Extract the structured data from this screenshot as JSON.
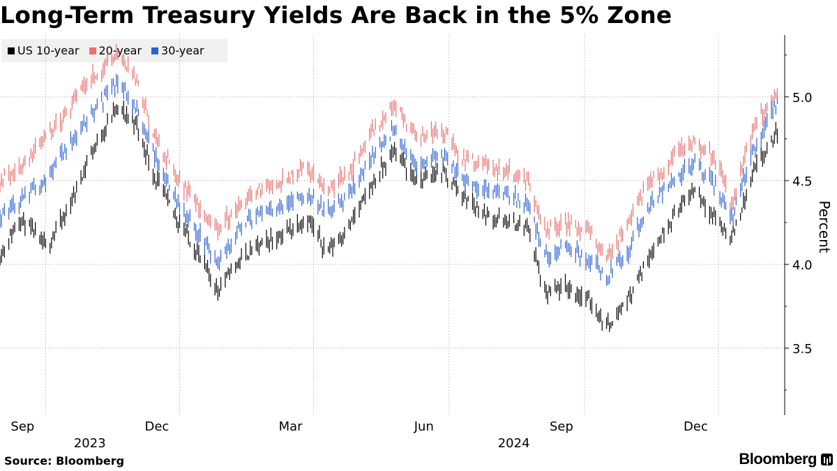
{
  "title": "Long-Term Treasury Yields Are Back in the 5% Zone",
  "source": "Source: Bloomberg",
  "brand": "Bloomberg",
  "chart_data": {
    "type": "line",
    "title": "Long-Term Treasury Yields Are Back in the 5% Zone",
    "ylabel": "Percent",
    "ylim": [
      3.1,
      5.37
    ],
    "yticks": [
      3.5,
      4.0,
      4.5,
      5.0
    ],
    "ytick_labels": [
      "3.5",
      "4.0",
      "4.5",
      "5.0"
    ],
    "x_range": [
      "2023-08-01",
      "2025-01-15"
    ],
    "x_months": [
      "Sep",
      "Dec",
      "Mar",
      "Jun",
      "Sep",
      "Dec"
    ],
    "x_month_dates": [
      "2023-09-01",
      "2023-12-01",
      "2024-03-01",
      "2024-06-01",
      "2024-09-01",
      "2024-12-01"
    ],
    "x_years": [
      "2023",
      "2024"
    ],
    "x_year_dates": [
      "2023-10-01",
      "2024-07-15"
    ],
    "grid": true,
    "legend_position": "top-left",
    "series": [
      {
        "name": "US 10-year",
        "color": "#000000",
        "dates": [
          "2023-08-01",
          "2023-08-15",
          "2023-09-01",
          "2023-09-15",
          "2023-10-01",
          "2023-10-19",
          "2023-11-01",
          "2023-11-15",
          "2023-12-01",
          "2023-12-27",
          "2024-01-10",
          "2024-01-25",
          "2024-02-10",
          "2024-02-25",
          "2024-03-10",
          "2024-03-25",
          "2024-04-10",
          "2024-04-25",
          "2024-05-10",
          "2024-05-28",
          "2024-06-10",
          "2024-06-25",
          "2024-07-10",
          "2024-07-25",
          "2024-08-05",
          "2024-08-20",
          "2024-09-05",
          "2024-09-16",
          "2024-10-01",
          "2024-10-15",
          "2024-11-01",
          "2024-11-15",
          "2024-12-01",
          "2024-12-10",
          "2024-12-25",
          "2025-01-10"
        ],
        "values": [
          4.05,
          4.28,
          4.1,
          4.3,
          4.65,
          4.93,
          4.85,
          4.5,
          4.25,
          3.85,
          4.02,
          4.12,
          4.18,
          4.28,
          4.08,
          4.22,
          4.48,
          4.68,
          4.5,
          4.55,
          4.42,
          4.3,
          4.25,
          4.22,
          3.82,
          3.86,
          3.78,
          3.63,
          3.8,
          4.05,
          4.3,
          4.45,
          4.25,
          4.15,
          4.55,
          4.78
        ]
      },
      {
        "name": "20-year",
        "color": "#e8706e",
        "dates": [
          "2023-08-01",
          "2023-08-15",
          "2023-09-01",
          "2023-09-15",
          "2023-10-01",
          "2023-10-19",
          "2023-11-01",
          "2023-11-15",
          "2023-12-01",
          "2023-12-27",
          "2024-01-10",
          "2024-01-25",
          "2024-02-10",
          "2024-02-25",
          "2024-03-10",
          "2024-03-25",
          "2024-04-10",
          "2024-04-25",
          "2024-05-10",
          "2024-05-28",
          "2024-06-10",
          "2024-06-25",
          "2024-07-10",
          "2024-07-25",
          "2024-08-05",
          "2024-08-20",
          "2024-09-05",
          "2024-09-16",
          "2024-10-01",
          "2024-10-15",
          "2024-11-01",
          "2024-11-15",
          "2024-12-01",
          "2024-12-10",
          "2024-12-25",
          "2025-01-10"
        ],
        "values": [
          4.5,
          4.58,
          4.75,
          4.9,
          5.1,
          5.25,
          5.1,
          4.75,
          4.5,
          4.2,
          4.35,
          4.45,
          4.5,
          4.58,
          4.44,
          4.55,
          4.8,
          4.95,
          4.75,
          4.8,
          4.63,
          4.6,
          4.56,
          4.5,
          4.2,
          4.25,
          4.18,
          4.05,
          4.25,
          4.48,
          4.64,
          4.75,
          4.6,
          4.35,
          4.82,
          5.03
        ]
      },
      {
        "name": "30-year",
        "color": "#2d61d0",
        "dates": [
          "2023-08-01",
          "2023-08-15",
          "2023-09-01",
          "2023-09-15",
          "2023-10-01",
          "2023-10-19",
          "2023-11-01",
          "2023-11-15",
          "2023-12-01",
          "2023-12-27",
          "2024-01-10",
          "2024-01-25",
          "2024-02-10",
          "2024-02-25",
          "2024-03-10",
          "2024-03-25",
          "2024-04-10",
          "2024-04-25",
          "2024-05-10",
          "2024-05-28",
          "2024-06-10",
          "2024-06-25",
          "2024-07-10",
          "2024-07-25",
          "2024-08-05",
          "2024-08-20",
          "2024-09-05",
          "2024-09-16",
          "2024-10-01",
          "2024-10-15",
          "2024-11-01",
          "2024-11-15",
          "2024-12-01",
          "2024-12-10",
          "2024-12-25",
          "2025-01-10"
        ],
        "values": [
          4.3,
          4.38,
          4.5,
          4.7,
          4.88,
          5.08,
          4.95,
          4.62,
          4.35,
          4.02,
          4.2,
          4.32,
          4.35,
          4.42,
          4.3,
          4.42,
          4.65,
          4.8,
          4.6,
          4.65,
          4.5,
          4.45,
          4.42,
          4.35,
          4.05,
          4.1,
          4.03,
          3.93,
          4.08,
          4.35,
          4.5,
          4.6,
          4.45,
          4.28,
          4.68,
          4.98
        ]
      }
    ]
  }
}
